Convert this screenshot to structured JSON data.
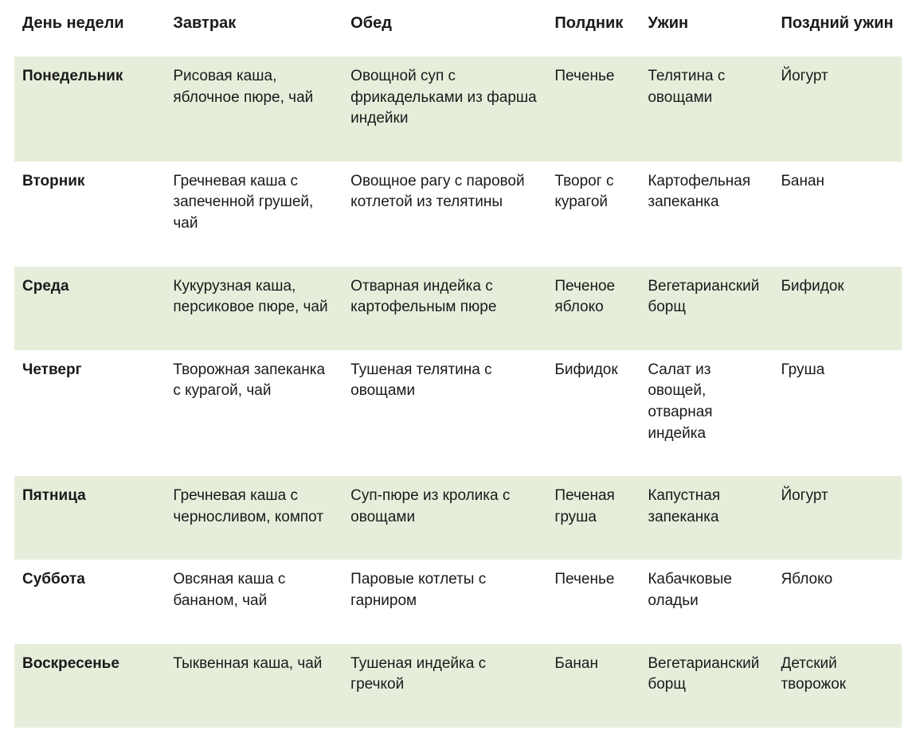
{
  "table": {
    "type": "table",
    "background_color": "#ffffff",
    "stripe_color": "#e6eedb",
    "text_color": "#1a1a1a",
    "header_fontsize": 20,
    "cell_fontsize": 19,
    "column_widths_pct": [
      17,
      20,
      23,
      10.5,
      15,
      14.5
    ],
    "columns": [
      "День недели",
      "Завтрак",
      "Обед",
      "Полдник",
      "Ужин",
      "Поздний ужин"
    ],
    "rows": [
      {
        "striped": true,
        "day": "Понедельник",
        "breakfast": "Рисовая каша, яблочное пюре, чай",
        "lunch": "Овощной суп с фрикадельками из фарша индейки",
        "snack": "Печенье",
        "dinner": "Телятина с овощами",
        "late": "Йогурт"
      },
      {
        "striped": false,
        "day": "Вторник",
        "breakfast": "Гречневая каша с запеченной грушей, чай",
        "lunch": "Овощное рагу с паровой котлетой из телятины",
        "snack": "Творог с курагой",
        "dinner": "Картофельная запеканка",
        "late": "Банан"
      },
      {
        "striped": true,
        "day": "Среда",
        "breakfast": "Кукурузная каша, персиковое пюре, чай",
        "lunch": "Отварная индейка с картофельным пюре",
        "snack": "Печеное яблоко",
        "dinner": "Вегетарианский борщ",
        "late": "Бифидок"
      },
      {
        "striped": false,
        "day": "Четверг",
        "breakfast": "Творожная запеканка с курагой, чай",
        "lunch": "Тушеная телятина с овощами",
        "snack": "Бифидок",
        "dinner": "Салат из овощей, отварная индейка",
        "late": "Груша"
      },
      {
        "striped": true,
        "day": "Пятница",
        "breakfast": "Гречневая каша с черносливом, компот",
        "lunch": "Суп-пюре из кролика с овощами",
        "snack": "Печеная груша",
        "dinner": "Капустная запеканка",
        "late": "Йогурт"
      },
      {
        "striped": false,
        "day": "Суббота",
        "breakfast": "Овсяная каша с бананом, чай",
        "lunch": "Паровые котлеты с гарниром",
        "snack": "Печенье",
        "dinner": "Кабачковые оладьи",
        "late": "Яблоко"
      },
      {
        "striped": true,
        "day": "Воскресенье",
        "breakfast": "Тыквенная каша, чай",
        "lunch": "Тушеная индейка с гречкой",
        "snack": "Банан",
        "dinner": "Вегетарианский борщ",
        "late": "Детский творожок"
      }
    ]
  }
}
